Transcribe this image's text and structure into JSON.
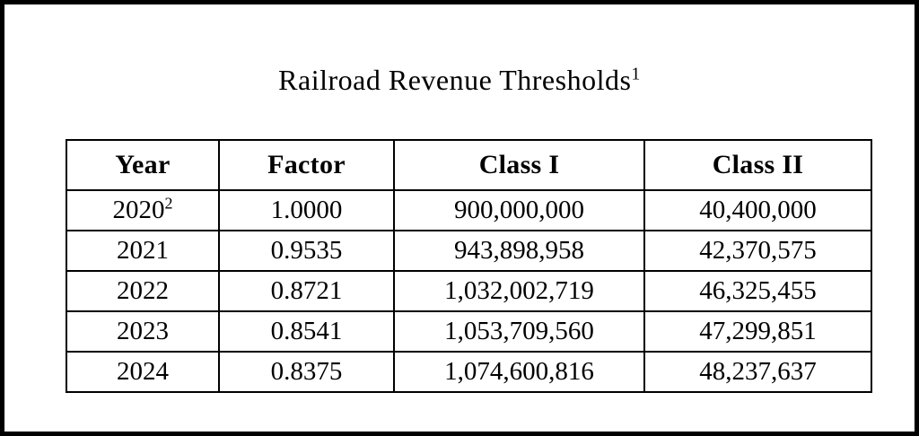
{
  "page": {
    "title": "Railroad Revenue Thresholds",
    "title_footnote_marker": "1"
  },
  "table": {
    "headers": [
      "Year",
      "Factor",
      "Class I",
      "Class II"
    ],
    "rows": [
      {
        "year": "2020",
        "year_footnote_marker": "2",
        "factor": "1.0000",
        "class_i": "900,000,000",
        "class_ii": "40,400,000"
      },
      {
        "year": "2021",
        "year_footnote_marker": "",
        "factor": "0.9535",
        "class_i": "943,898,958",
        "class_ii": "42,370,575"
      },
      {
        "year": "2022",
        "year_footnote_marker": "",
        "factor": "0.8721",
        "class_i": "1,032,002,719",
        "class_ii": "46,325,455"
      },
      {
        "year": "2023",
        "year_footnote_marker": "",
        "factor": "0.8541",
        "class_i": "1,053,709,560",
        "class_ii": "47,299,851"
      },
      {
        "year": "2024",
        "year_footnote_marker": "",
        "factor": "0.8375",
        "class_i": "1,074,600,816",
        "class_ii": "48,237,637"
      }
    ]
  },
  "colors": {
    "background": "#ffffff",
    "border": "#000000",
    "text": "#000000"
  }
}
